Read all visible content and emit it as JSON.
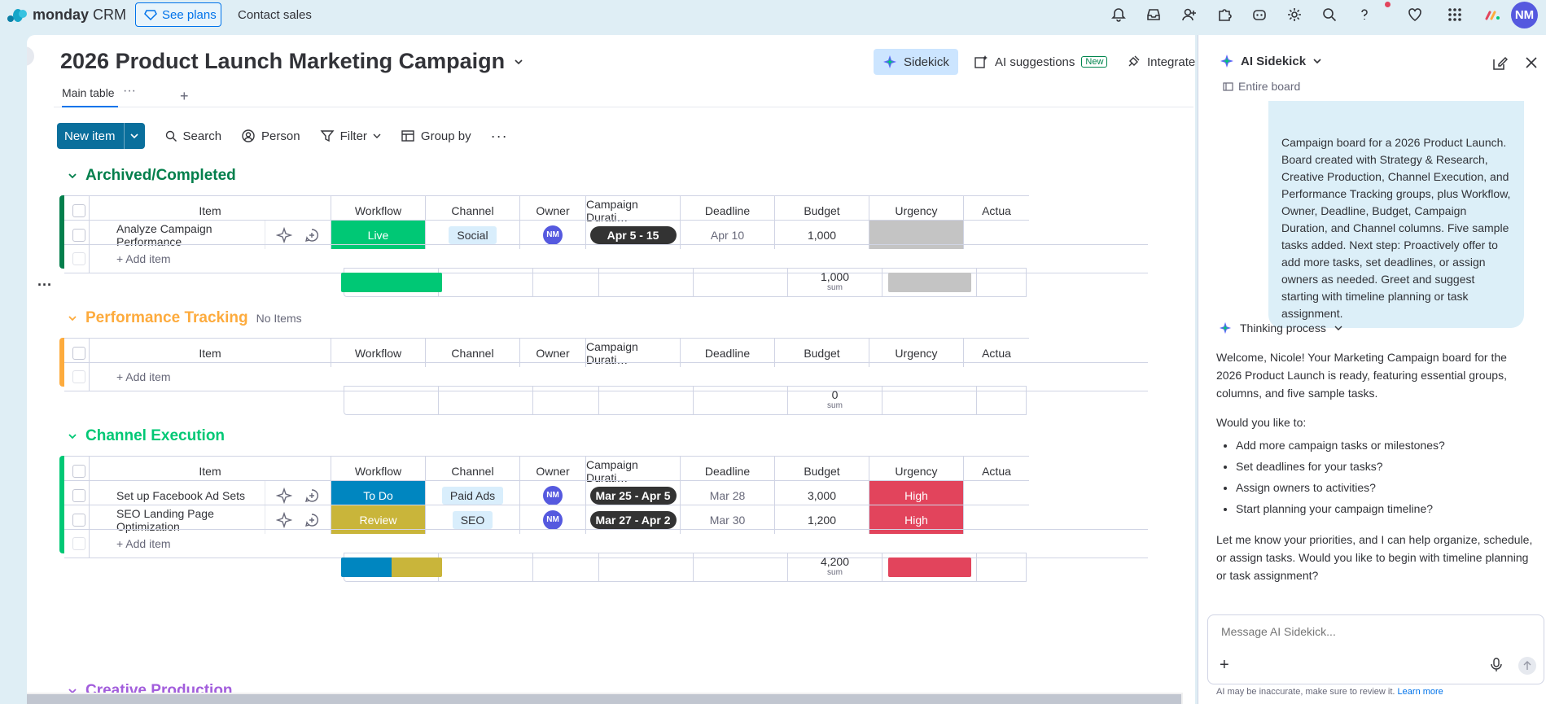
{
  "top": {
    "brand": "monday",
    "brand_product": " CRM",
    "see_plans": "See plans",
    "contact_sales": "Contact sales",
    "avatar": "NM"
  },
  "board": {
    "title": "2026 Product Launch Marketing Campaign",
    "sidekick_btn": "Sidekick",
    "ai_suggestions": "AI suggestions",
    "new_badge": "New",
    "integrate": "Integrate",
    "tab_main": "Main table",
    "tab_dots": "···",
    "tab_plus": "+",
    "new_item": "New item",
    "search": "Search",
    "person": "Person",
    "filter": "Filter",
    "group_by": "Group by"
  },
  "columns": [
    "Item",
    "Workflow",
    "Channel",
    "Owner",
    "Campaign Durati…",
    "Deadline",
    "Budget",
    "Urgency",
    "Actua"
  ],
  "add_item": "+ Add item",
  "sum_label": "sum",
  "groups": {
    "archived": {
      "title": "Archived/Completed",
      "color": "#037f4c",
      "rows": [
        {
          "item": "Analyze Campaign Performance",
          "workflow": "Live",
          "workflow_color": "#00c875",
          "channel": "Social",
          "owner": "NM",
          "duration": "Apr 5 - 15",
          "deadline": "Apr 10",
          "budget": "1,000",
          "urgency": "",
          "urgency_color": "#c4c4c4"
        }
      ],
      "sum_budget": "1,000"
    },
    "performance": {
      "title": "Performance Tracking",
      "subtitle": "No Items",
      "color": "#fdab3d",
      "sum_budget": "0"
    },
    "channel": {
      "title": "Channel Execution",
      "color": "#00c875",
      "rows": [
        {
          "item": "Set up Facebook Ad Sets",
          "workflow": "To Do",
          "workflow_color": "#0086c0",
          "channel": "Paid Ads",
          "owner": "NM",
          "duration": "Mar 25 - Apr 5",
          "deadline": "Mar 28",
          "budget": "3,000",
          "urgency": "High",
          "urgency_color": "#e2445c"
        },
        {
          "item": "SEO Landing Page Optimization",
          "workflow": "Review",
          "workflow_color": "#c9b53a",
          "channel": "SEO",
          "owner": "NM",
          "duration": "Mar 27 - Apr 2",
          "deadline": "Mar 30",
          "budget": "1,200",
          "urgency": "High",
          "urgency_color": "#e2445c"
        }
      ],
      "sum_budget": "4,200"
    },
    "creative": {
      "title": "Creative Production",
      "color": "#a25ddc"
    }
  },
  "sidekick": {
    "title": "AI Sidekick",
    "scope": "Entire board",
    "user_message": "Campaign board for a 2026 Product Launch. Board created with Strategy & Research, Creative Production, Channel Execution, and Performance Tracking groups, plus Workflow, Owner, Deadline, Budget, Campaign Duration, and Channel columns. Five sample tasks added. Next step: Proactively offer to add more tasks, set deadlines, or assign owners as needed. Greet and suggest starting with timeline planning or task assignment.",
    "thinking": "Thinking process",
    "resp_intro": "Welcome, Nicole! Your Marketing Campaign board for the 2026 Product Launch is ready, featuring essential groups, columns, and five sample tasks.",
    "resp_question": "Would you like to:",
    "resp_options": [
      "Add more campaign tasks or milestones?",
      "Set deadlines for your tasks?",
      "Assign owners to activities?",
      "Start planning your campaign timeline?"
    ],
    "resp_outro": "Let me know your priorities, and I can help organize, schedule, or assign tasks. Would you like to begin with timeline planning or task assignment?",
    "input_placeholder": "Message AI Sidekick...",
    "disclaimer": "AI may be inaccurate, make sure to review it.",
    "learn_more": "Learn more"
  }
}
